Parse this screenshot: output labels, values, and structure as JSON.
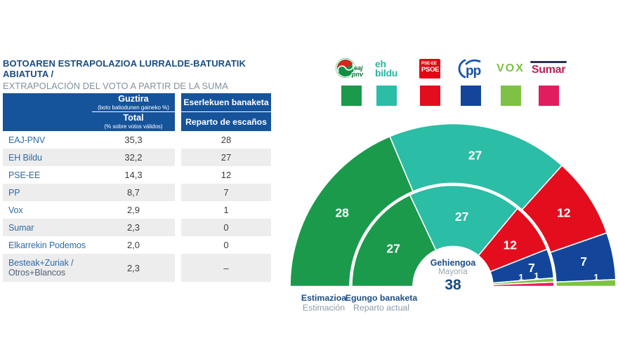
{
  "title": {
    "eu": "BOTOAREN ESTRAPOLAZIOA LURRALDE-BATURATIK ABIATUTA /",
    "es": "EXTRAPOLACIÓN DEL VOTO A PARTIR DE LA SUMA TERRITORIAL"
  },
  "table": {
    "header": {
      "total": {
        "eu": "Guztira",
        "eu_sub": "(boto baliodunen gaineko %)",
        "es": "Total",
        "es_sub": "(% sobre votos válidos)"
      },
      "seats": {
        "eu": "Eserlekuen banaketa",
        "es": "Reparto de escaños"
      }
    },
    "rows": [
      {
        "party": "EAJ-PNV",
        "total": "35,3",
        "seats": "28"
      },
      {
        "party": "EH Bildu",
        "total": "32,2",
        "seats": "27"
      },
      {
        "party": "PSE-EE",
        "total": "14,3",
        "seats": "12"
      },
      {
        "party": "PP",
        "total": "8,7",
        "seats": "7"
      },
      {
        "party": "Vox",
        "total": "2,9",
        "seats": "1"
      },
      {
        "party": "Sumar",
        "total": "2,3",
        "seats": "0"
      },
      {
        "party": "Elkarrekin Podemos",
        "total": "2,0",
        "seats": "0"
      },
      {
        "party": "Besteak+Zuriak /",
        "party_line2": "Otros+Blancos",
        "total": "2,3",
        "seats": "–"
      }
    ]
  },
  "legend": {
    "items": [
      {
        "id": "pnv",
        "name": "EAJ-PNV",
        "lines": [
          "eaj",
          "pnv"
        ],
        "color": "#1b9a4c"
      },
      {
        "id": "bildu",
        "name": "EH Bildu",
        "lines": [
          "eh",
          "bildu"
        ],
        "color": "#2bbda6"
      },
      {
        "id": "psoe",
        "name": "PSE-EE PSOE",
        "lines": [
          "PSE-EE",
          "PSOE"
        ],
        "color": "#e30d1e"
      },
      {
        "id": "pp",
        "name": "PP",
        "lines": [
          "pp"
        ],
        "color": "#13469a"
      },
      {
        "id": "vox",
        "name": "VOX",
        "lines": [
          "VOX"
        ],
        "color": "#7dc243"
      },
      {
        "id": "sumar",
        "name": "Sumar",
        "lines": [
          "Sumar"
        ],
        "color": "#e31c5f"
      }
    ]
  },
  "chart_data": {
    "type": "pie",
    "subtype": "double-ring-hemicycle",
    "total_seats": 75,
    "majority_label": {
      "eu": "Gehiengoa",
      "es": "Mayoría",
      "value": "38"
    },
    "rings": [
      {
        "id": "estimation",
        "label": {
          "eu": "Estimazioa",
          "es": "Estimación"
        },
        "series": [
          {
            "party": "EAJ-PNV",
            "seats": 28,
            "color": "#1b9a4c"
          },
          {
            "party": "EH Bildu",
            "seats": 27,
            "color": "#2bbda6"
          },
          {
            "party": "PSE-EE",
            "seats": 12,
            "color": "#e30d1e"
          },
          {
            "party": "PP",
            "seats": 7,
            "color": "#13469a"
          },
          {
            "party": "Vox",
            "seats": 1,
            "color": "#7dc243"
          }
        ]
      },
      {
        "id": "actual",
        "label": {
          "eu": "Egungo banaketa",
          "es": "Reparto actual"
        },
        "series": [
          {
            "party": "EAJ-PNV",
            "seats": 27,
            "color": "#1b9a4c"
          },
          {
            "party": "EH Bildu",
            "seats": 27,
            "color": "#2bbda6"
          },
          {
            "party": "PSE-EE",
            "seats": 12,
            "color": "#e30d1e"
          },
          {
            "party": "PP",
            "seats": 7,
            "color": "#13469a"
          },
          {
            "party": "Vox",
            "seats": 1,
            "color": "#7dc243"
          },
          {
            "party": "Sumar",
            "seats": 1,
            "color": "#e31c5f"
          }
        ]
      }
    ]
  },
  "colors": {
    "header_bg": "#15539a",
    "title_blue": "#1b4c80",
    "subtitle_gray": "#7f919f",
    "party_name_blue": "#2e6ba5",
    "value_text": "#3e3e3e",
    "row_stripe": "#ededed",
    "majority_blue": "#174a80",
    "label_gray": "#8d9aa7"
  }
}
